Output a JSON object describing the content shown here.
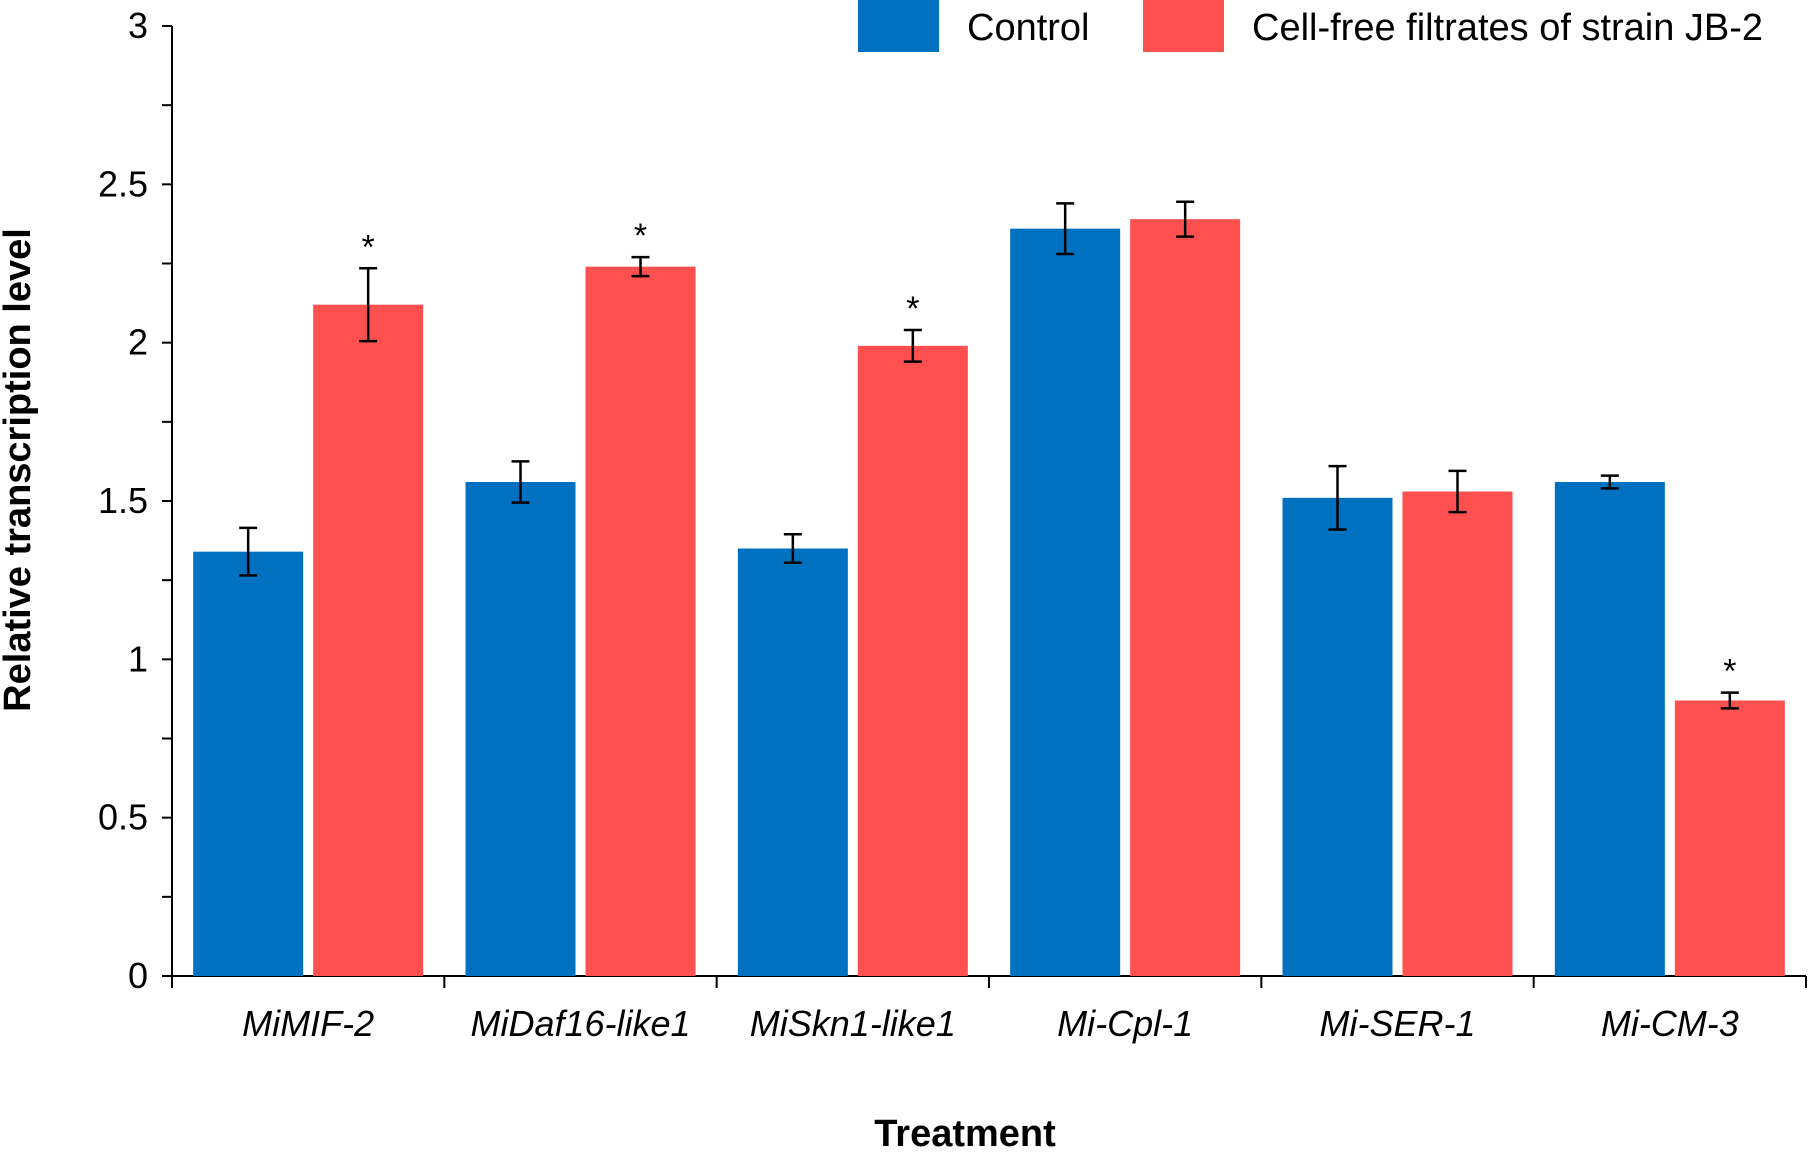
{
  "chart_data": {
    "type": "bar",
    "title": "",
    "xlabel": "Treatment",
    "ylabel": "Relative transcription level",
    "ylim": [
      0,
      3
    ],
    "yticks": [
      "0",
      "0.5",
      "1",
      "1.5",
      "2",
      "2.5",
      "3"
    ],
    "categories": [
      "MiMIF-2",
      "MiDaf16-like1",
      "MiSkn1-like1",
      "Mi-Cpl-1",
      "Mi-SER-1",
      "Mi-CM-3"
    ],
    "legend_position": "top-right",
    "series": [
      {
        "name": "Control",
        "color": "#0070C0",
        "values": [
          1.34,
          1.56,
          1.35,
          2.36,
          1.51,
          1.56
        ],
        "errors": [
          0.075,
          0.065,
          0.045,
          0.08,
          0.1,
          0.02
        ],
        "significance": [
          "",
          "",
          "",
          "",
          "",
          ""
        ]
      },
      {
        "name": "Cell-free filtrates of strain JB-2",
        "color": "#FF5050",
        "values": [
          2.12,
          2.24,
          1.99,
          2.39,
          1.53,
          0.87
        ],
        "errors": [
          0.115,
          0.03,
          0.05,
          0.055,
          0.065,
          0.025
        ],
        "significance": [
          "*",
          "*",
          "*",
          "",
          "",
          "*"
        ]
      }
    ]
  }
}
